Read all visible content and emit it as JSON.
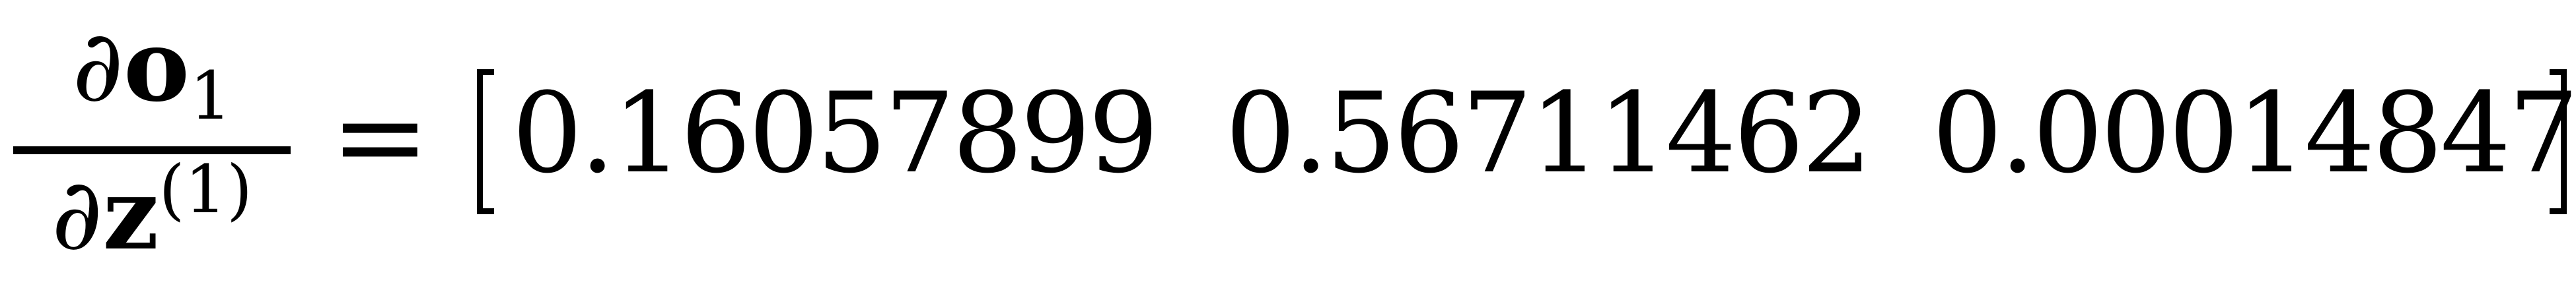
{
  "equation": {
    "lhs": {
      "numerator": {
        "partial": "∂",
        "vector": "o",
        "subscript": "1"
      },
      "denominator": {
        "partial": "∂",
        "vector": "z",
        "superscript": "(1)"
      }
    },
    "equals": "=",
    "bracket_left": "[",
    "bracket_right": "]",
    "entries": [
      "0.16057899",
      "0.56711462",
      "0.00014847"
    ]
  }
}
